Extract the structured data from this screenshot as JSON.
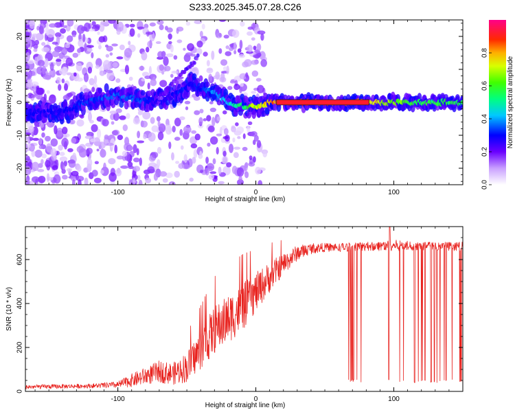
{
  "title": "S233.2025.345.07.28.C26",
  "chart_data": [
    {
      "type": "heatmap",
      "xlabel": "Height of straight line (km)",
      "ylabel": "Frequency (Hz)",
      "xlim": [
        -167,
        150
      ],
      "ylim": [
        -25,
        25
      ],
      "xticks": [
        -100,
        0,
        100
      ],
      "yticks": [
        -20,
        -10,
        0,
        10,
        20
      ],
      "xtick_labels": [
        "-100",
        "0",
        "100"
      ],
      "ytick_labels": [
        "-20",
        "-10",
        "0",
        "10",
        "20"
      ],
      "colorbar": {
        "label": "Normalized spectral amplitude",
        "range": [
          0,
          1
        ],
        "ticks": [
          0.0,
          0.2,
          0.4,
          0.6,
          0.8
        ],
        "tick_labels": [
          "0.0",
          "0.2",
          "0.4",
          "0.6",
          "0.8"
        ]
      },
      "ridge": {
        "x": [
          -167,
          -140,
          -120,
          -100,
          -80,
          -70,
          -60,
          -50,
          -45,
          -40,
          -30,
          -20,
          -10,
          0,
          10,
          20,
          40,
          60,
          80,
          100,
          120,
          150
        ],
        "frequency": [
          -3,
          -3,
          0.5,
          2,
          0.5,
          0.5,
          2,
          5,
          5.5,
          4,
          3,
          0,
          -1,
          -1.5,
          0,
          0,
          0,
          0,
          0,
          0,
          0,
          0
        ],
        "amplitude": [
          0.3,
          0.3,
          0.35,
          0.4,
          0.35,
          0.3,
          0.3,
          0.35,
          0.3,
          0.35,
          0.4,
          0.45,
          0.6,
          0.75,
          0.85,
          0.95,
          0.95,
          0.9,
          0.85,
          0.7,
          0.6,
          0.6
        ]
      }
    },
    {
      "type": "line",
      "xlabel": "Height of straight line (km)",
      "ylabel": "SNR (10 * v/v)",
      "xlim": [
        -167,
        150
      ],
      "ylim": [
        0,
        750
      ],
      "xticks": [
        -100,
        0,
        100
      ],
      "yticks": [
        0,
        200,
        400,
        600
      ],
      "xtick_labels": [
        "-100",
        "0",
        "100"
      ],
      "ytick_labels": [
        "0",
        "200",
        "400",
        "600"
      ],
      "series": [
        {
          "name": "SNR",
          "color": "#e8231f",
          "envelope_x": [
            -167,
            -120,
            -100,
            -90,
            -80,
            -70,
            -60,
            -50,
            -40,
            -30,
            -20,
            -10,
            0,
            10,
            20,
            30,
            40,
            50,
            60,
            80,
            100,
            120,
            150
          ],
          "envelope_y": [
            20,
            25,
            30,
            50,
            70,
            90,
            80,
            110,
            190,
            280,
            330,
            380,
            450,
            520,
            580,
            630,
            650,
            655,
            655,
            660,
            665,
            660,
            660
          ],
          "noise_amplitude": [
            10,
            10,
            15,
            30,
            40,
            50,
            50,
            70,
            90,
            110,
            110,
            110,
            90,
            70,
            50,
            35,
            25,
            20,
            20,
            20,
            25,
            20,
            20
          ],
          "dropout_range": [
            57,
            150
          ],
          "dropout_floor": 40,
          "peak": {
            "x": 97,
            "y": 750
          }
        }
      ]
    }
  ],
  "colors": {
    "line": "#e8231f",
    "axis": "#000000"
  }
}
